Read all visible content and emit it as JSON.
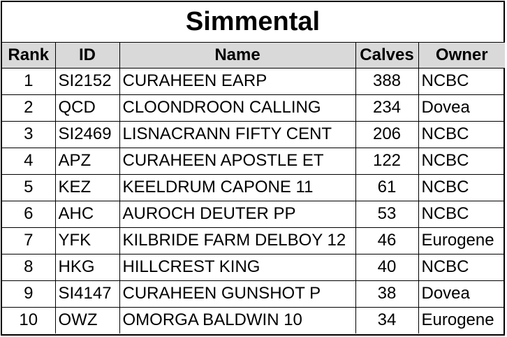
{
  "title": "Simmental",
  "columns": [
    "Rank",
    "ID",
    "Name",
    "Calves",
    "Owner"
  ],
  "rows": [
    {
      "rank": "1",
      "id": "SI2152",
      "name": "CURAHEEN EARP",
      "calves": "388",
      "owner": "NCBC"
    },
    {
      "rank": "2",
      "id": "QCD",
      "name": "CLOONDROON CALLING",
      "calves": "234",
      "owner": "Dovea"
    },
    {
      "rank": "3",
      "id": "SI2469",
      "name": "LISNACRANN FIFTY CENT",
      "calves": "206",
      "owner": "NCBC"
    },
    {
      "rank": "4",
      "id": "APZ",
      "name": "CURAHEEN APOSTLE ET",
      "calves": "122",
      "owner": "NCBC"
    },
    {
      "rank": "5",
      "id": "KEZ",
      "name": "KEELDRUM CAPONE 11",
      "calves": "61",
      "owner": "NCBC"
    },
    {
      "rank": "6",
      "id": "AHC",
      "name": "AUROCH DEUTER PP",
      "calves": "53",
      "owner": "NCBC"
    },
    {
      "rank": "7",
      "id": "YFK",
      "name": "KILBRIDE FARM DELBOY 12",
      "calves": "46",
      "owner": "Eurogene"
    },
    {
      "rank": "8",
      "id": "HKG",
      "name": "HILLCREST KING",
      "calves": "40",
      "owner": "NCBC"
    },
    {
      "rank": "9",
      "id": "SI4147",
      "name": "CURAHEEN GUNSHOT P",
      "calves": "38",
      "owner": "Dovea"
    },
    {
      "rank": "10",
      "id": "OWZ",
      "name": "OMORGA BALDWIN 10",
      "calves": "34",
      "owner": "Eurogene"
    }
  ],
  "colors": {
    "header_bg": "#d9d9d9",
    "border": "#000000",
    "text": "#000000"
  }
}
